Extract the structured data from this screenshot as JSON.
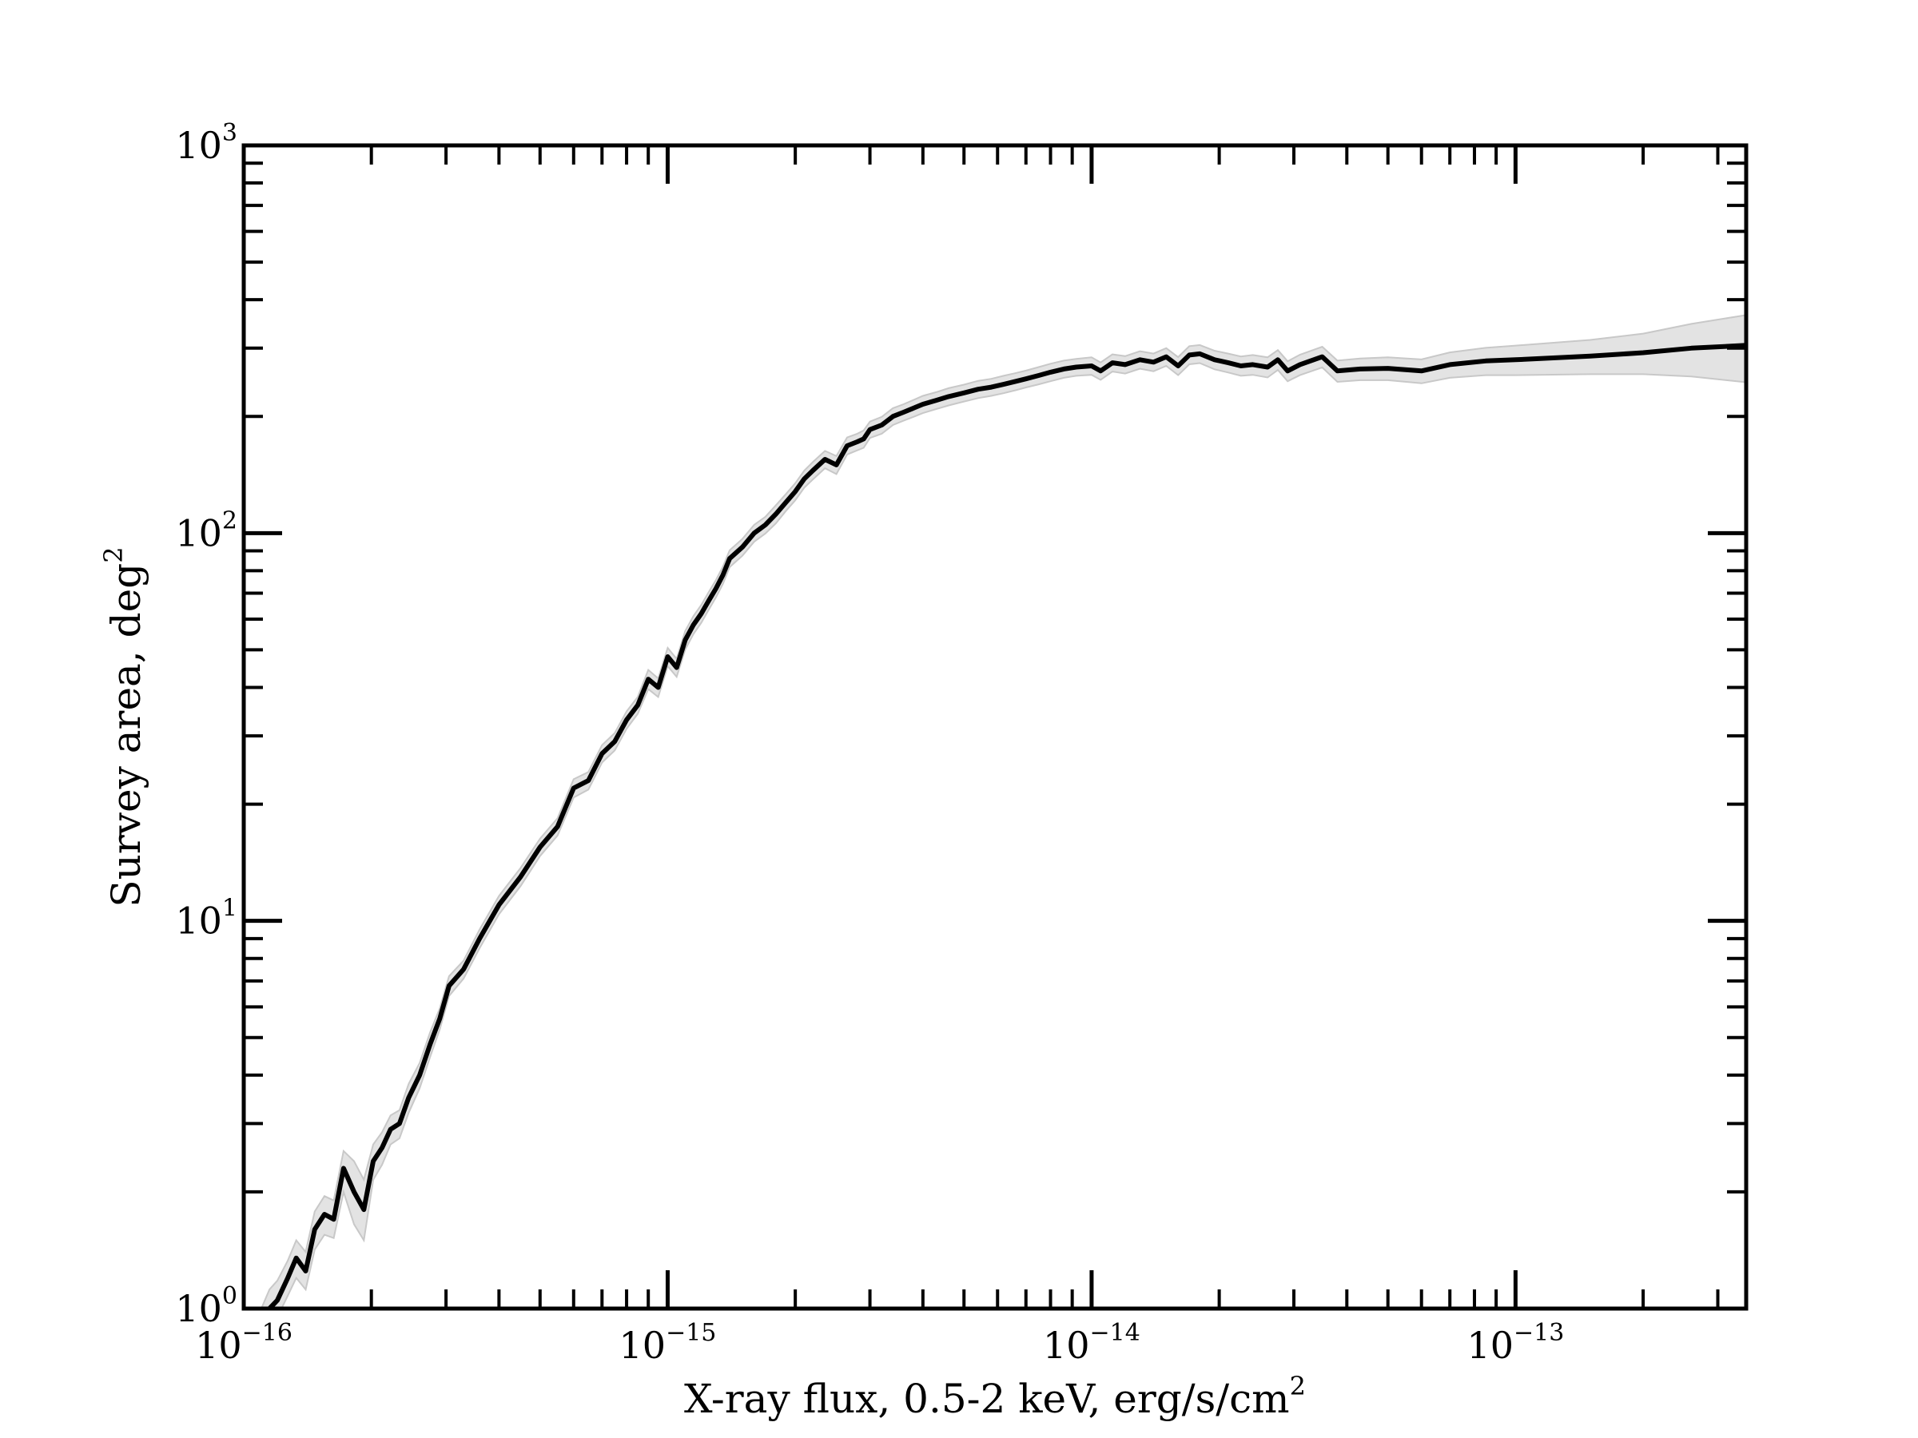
{
  "chart_data": {
    "type": "line",
    "title": "",
    "xlabel": "X-ray flux, 0.5-2 keV, erg/s/cm",
    "xlabel_superscript": "2",
    "ylabel": "Survey area, deg",
    "ylabel_superscript": "2",
    "x_scale": "log",
    "y_scale": "log",
    "xlim": [
      1e-16,
      3.5e-13
    ],
    "ylim": [
      1,
      1000
    ],
    "grid": false,
    "legend": "none",
    "x_ticks": [
      {
        "base": "10",
        "exp": "−16",
        "value": 1e-16
      },
      {
        "base": "10",
        "exp": "−15",
        "value": 1e-15
      },
      {
        "base": "10",
        "exp": "−14",
        "value": 1e-14
      },
      {
        "base": "10",
        "exp": "−13",
        "value": 1e-13
      }
    ],
    "y_ticks": [
      {
        "base": "10",
        "exp": "0",
        "value": 1
      },
      {
        "base": "10",
        "exp": "1",
        "value": 10
      },
      {
        "base": "10",
        "exp": "2",
        "value": 100
      },
      {
        "base": "10",
        "exp": "3",
        "value": 1000
      }
    ],
    "colors": {
      "line": "#000000",
      "band": "#e3e3e3",
      "band_edge": "#c8c8c8"
    },
    "series": [
      {
        "x": [
          1.1e-16,
          1.15e-16,
          1.2e-16,
          1.27e-16,
          1.33e-16,
          1.4e-16,
          1.47e-16,
          1.55e-16,
          1.63e-16,
          1.72e-16,
          1.82e-16,
          1.92e-16,
          2.02e-16,
          2.12e-16,
          2.22e-16,
          2.33e-16,
          2.45e-16,
          2.6e-16,
          2.75e-16,
          2.9e-16,
          3.05e-16,
          3.3e-16,
          3.6e-16,
          4e-16,
          4.5e-16,
          5e-16,
          5.5e-16,
          6e-16,
          6.5e-16,
          7e-16,
          7.5e-16,
          8e-16,
          8.5e-16,
          9e-16,
          9.5e-16,
          1e-15,
          1.05e-15,
          1.1e-15,
          1.15e-15,
          1.2e-15,
          1.25e-15,
          1.3e-15,
          1.35e-15,
          1.4e-15,
          1.5e-15,
          1.6e-15,
          1.7e-15,
          1.8e-15,
          1.9e-15,
          2e-15,
          2.1e-15,
          2.2e-15,
          2.35e-15,
          2.5e-15,
          2.65e-15,
          2.8e-15,
          2.9e-15,
          3e-15,
          3.2e-15,
          3.4e-15,
          3.6e-15,
          3.8e-15,
          4e-15,
          4.3e-15,
          4.6e-15,
          5e-15,
          5.4e-15,
          5.8e-15,
          6.2e-15,
          6.6e-15,
          7e-15,
          7.5e-15,
          8e-15,
          8.6e-15,
          9.2e-15,
          1e-14,
          1.05e-14,
          1.12e-14,
          1.2e-14,
          1.3e-14,
          1.4e-14,
          1.5e-14,
          1.6e-14,
          1.7e-14,
          1.8e-14,
          1.95e-14,
          2.1e-14,
          2.25e-14,
          2.4e-14,
          2.6e-14,
          2.75e-14,
          2.9e-14,
          3.1e-14,
          3.5e-14,
          3.8e-14,
          4.3e-14,
          5e-14,
          6e-14,
          7e-14,
          8.5e-14,
          1e-13,
          1.5e-13,
          2e-13,
          2.6e-13,
          3.5e-13
        ],
        "y": [
          0.92,
          1.0,
          1.05,
          1.2,
          1.35,
          1.25,
          1.6,
          1.75,
          1.7,
          2.3,
          2.0,
          1.8,
          2.4,
          2.6,
          2.9,
          3.0,
          3.5,
          4.0,
          4.8,
          5.6,
          6.8,
          7.5,
          9.0,
          11.0,
          13.0,
          15.5,
          17.5,
          22.0,
          23.0,
          27.0,
          29.0,
          33.0,
          36.0,
          42.0,
          40.0,
          48.0,
          45.0,
          53.0,
          58.0,
          62.0,
          67.0,
          72.0,
          78.0,
          86.0,
          92.0,
          100.0,
          105.0,
          112.0,
          120.0,
          128.0,
          138.0,
          145.0,
          155.0,
          150.0,
          168.0,
          172.0,
          175.0,
          185.0,
          190.0,
          200.0,
          205.0,
          210.0,
          215.0,
          220.0,
          225.0,
          230.0,
          235.0,
          238.0,
          242.0,
          246.0,
          250.0,
          255.0,
          260.0,
          265.0,
          268.0,
          270.0,
          262.0,
          275.0,
          272.0,
          280.0,
          276.0,
          285.0,
          270.0,
          288.0,
          290.0,
          280.0,
          275.0,
          270.0,
          272.0,
          268.0,
          280.0,
          262.0,
          272.0,
          285.0,
          262.0,
          265.0,
          266.0,
          262.0,
          272.0,
          278.0,
          280.0,
          286.0,
          292.0,
          300.0,
          305.0
        ],
        "y_low": [
          0.85,
          0.9,
          0.95,
          1.08,
          1.2,
          1.12,
          1.42,
          1.55,
          1.52,
          2.0,
          1.65,
          1.5,
          2.15,
          2.35,
          2.65,
          2.75,
          3.2,
          3.7,
          4.45,
          5.25,
          6.4,
          7.1,
          8.5,
          10.4,
          12.3,
          14.7,
          16.6,
          20.8,
          21.8,
          25.6,
          27.5,
          31.3,
          34.2,
          39.6,
          37.8,
          45.4,
          42.6,
          50.1,
          54.9,
          58.7,
          63.5,
          68.3,
          74.0,
          81.7,
          87.4,
          95.0,
          99.8,
          106.0,
          114.0,
          121.5,
          131.0,
          137.5,
          147.0,
          142.0,
          159.5,
          163.5,
          166.0,
          176.0,
          180.5,
          190.0,
          195.0,
          199.5,
          204.0,
          209.0,
          213.5,
          218.5,
          223.0,
          226.0,
          229.5,
          233.5,
          237.5,
          242.0,
          246.5,
          251.5,
          254.5,
          256.0,
          248.5,
          261.0,
          258.0,
          265.5,
          261.5,
          270.0,
          255.5,
          272.5,
          274.5,
          264.5,
          259.5,
          254.5,
          256.0,
          252.0,
          263.5,
          246.5,
          255.5,
          267.5,
          245.5,
          248.0,
          248.0,
          243.5,
          251.5,
          255.5,
          255.5,
          257.0,
          257.0,
          253.5,
          245.0
        ],
        "y_high": [
          1.0,
          1.12,
          1.18,
          1.33,
          1.5,
          1.4,
          1.78,
          1.95,
          1.9,
          2.55,
          2.4,
          2.15,
          2.65,
          2.85,
          3.15,
          3.25,
          3.8,
          4.3,
          5.15,
          5.95,
          7.2,
          7.9,
          9.5,
          11.6,
          13.7,
          16.3,
          18.4,
          23.2,
          24.2,
          28.4,
          30.5,
          34.7,
          37.8,
          44.4,
          42.2,
          50.6,
          47.4,
          55.9,
          61.1,
          65.3,
          70.5,
          75.7,
          82.0,
          90.3,
          96.6,
          105.0,
          110.2,
          118.0,
          126.0,
          134.5,
          145.0,
          152.5,
          163.0,
          158.0,
          176.5,
          180.5,
          184.0,
          194.0,
          199.5,
          210.0,
          215.0,
          220.5,
          226.0,
          231.0,
          236.5,
          241.5,
          247.0,
          250.0,
          254.5,
          258.5,
          262.5,
          268.0,
          273.5,
          278.5,
          281.5,
          284.0,
          275.5,
          289.0,
          286.0,
          294.5,
          290.5,
          300.0,
          284.5,
          303.5,
          305.5,
          295.5,
          290.5,
          285.5,
          288.0,
          284.0,
          296.5,
          277.5,
          288.5,
          302.5,
          278.5,
          282.0,
          284.0,
          280.5,
          292.5,
          300.5,
          304.5,
          315.0,
          327.0,
          346.5,
          365.0
        ]
      }
    ]
  }
}
